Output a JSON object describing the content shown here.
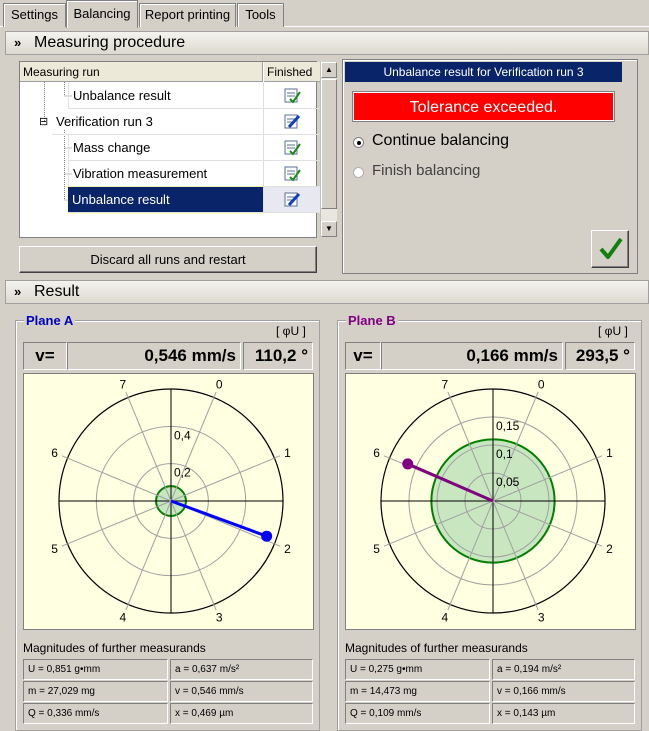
{
  "tabs": [
    {
      "label": "Settings"
    },
    {
      "label": "Balancing"
    },
    {
      "label": "Report printing"
    },
    {
      "label": "Tools"
    }
  ],
  "measuring": {
    "section_title": "Measuring procedure",
    "col_run": "Measuring run",
    "col_finished": "Finished",
    "rows": [
      {
        "label": "Unbalance result",
        "collapse": ""
      },
      {
        "label": "Verification run 3",
        "collapse": "⊟"
      },
      {
        "label": "Mass change",
        "collapse": ""
      },
      {
        "label": "Vibration measurement",
        "collapse": ""
      },
      {
        "label": "Unbalance result",
        "collapse": ""
      }
    ],
    "discard_label": "Discard all runs and restart"
  },
  "result_dialog": {
    "title": "Unbalance result for Verification run 3",
    "tolerance_text": "Tolerance exceeded.",
    "option_continue": "Continue balancing",
    "option_finish": "Finish balancing",
    "selected": "continue"
  },
  "result": {
    "section_title": "Result",
    "planes": [
      {
        "name": "Plane A",
        "color": "#0000c0",
        "unit_label": "[ φU ]",
        "v_label": "v=",
        "magnitude": "0,546 mm/s",
        "angle": "110,2 °",
        "mag_title": "Magnitudes of further measurands",
        "cells": [
          "U = 0,851 g•mm",
          "a = 0,637 m/s²",
          "m = 27,029 mg",
          "v = 0,546 mm/s",
          "Q = 0,336 mm/s",
          "x = 0,469 µm"
        ]
      },
      {
        "name": "Plane B",
        "color": "#800080",
        "unit_label": "[ φU ]",
        "v_label": "v=",
        "magnitude": "0,166 mm/s",
        "angle": "293,5 °",
        "mag_title": "Magnitudes of further measurands",
        "cells": [
          "U = 0,275 g•mm",
          "a = 0,194 m/s²",
          "m = 14,473 mg",
          "v = 0,166 mm/s",
          "Q = 0,109 mm/s",
          "x = 0,143 µm"
        ]
      }
    ]
  },
  "chart_data": [
    {
      "type": "polar",
      "title": "Plane A",
      "ring_labels": [
        "0,2",
        "0,4"
      ],
      "ring_values": [
        0.2,
        0.4
      ],
      "r_max": 0.6,
      "position_labels": [
        "0",
        "1",
        "2",
        "3",
        "4",
        "5",
        "6",
        "7"
      ],
      "vector": {
        "magnitude": 0.546,
        "angle_deg": 110.2,
        "color": "#0000ff"
      },
      "tolerance_radius": 0.08,
      "tolerance_color": "#008000"
    },
    {
      "type": "polar",
      "title": "Plane B",
      "ring_labels": [
        "0,05",
        "0,1",
        "0,15"
      ],
      "ring_values": [
        0.05,
        0.1,
        0.15
      ],
      "r_max": 0.2,
      "position_labels": [
        "0",
        "1",
        "2",
        "3",
        "4",
        "5",
        "6",
        "7"
      ],
      "vector": {
        "magnitude": 0.166,
        "angle_deg": 293.5,
        "color": "#800080"
      },
      "tolerance_radius": 0.11,
      "tolerance_color": "#008000"
    }
  ]
}
